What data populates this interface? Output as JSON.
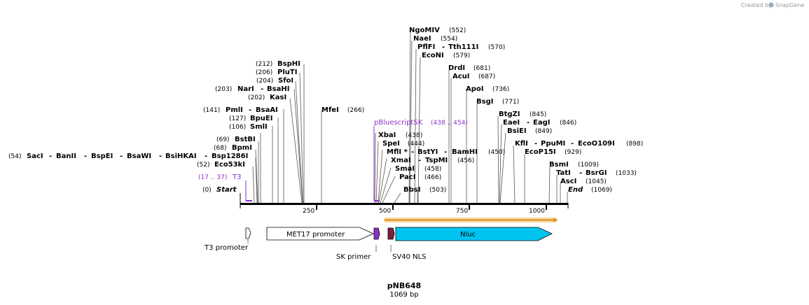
{
  "credit": {
    "prefix": "Created by",
    "brand": "SnapGene"
  },
  "map": {
    "name": "pNB648",
    "length": "1069 bp"
  },
  "ticks": [
    "250",
    "500",
    "750",
    "1000"
  ],
  "enzymes": [
    {
      "name": "Start",
      "pos": "(0)"
    },
    {
      "name": "T3",
      "pos": "(17 .. 37)"
    },
    {
      "name": "Eco53kI",
      "pos": "(52)"
    },
    {
      "name": "SacI",
      "pos": "(54)"
    },
    {
      "name": "BanII",
      "pos": ""
    },
    {
      "name": "BspEI",
      "pos": ""
    },
    {
      "name": "BsaWI",
      "pos": ""
    },
    {
      "name": "BsiHKAI",
      "pos": ""
    },
    {
      "name": "Bsp1286I",
      "pos": ""
    },
    {
      "name": "BpmI",
      "pos": "(68)"
    },
    {
      "name": "BstBI",
      "pos": "(69)"
    },
    {
      "name": "SmlI",
      "pos": "(106)"
    },
    {
      "name": "BpuEI",
      "pos": "(127)"
    },
    {
      "name": "PmlI",
      "pos": "(141)"
    },
    {
      "name": "BsaAI",
      "pos": ""
    },
    {
      "name": "KasI",
      "pos": "(202)"
    },
    {
      "name": "NarI",
      "pos": "(203)"
    },
    {
      "name": "BsaHI",
      "pos": ""
    },
    {
      "name": "SfoI",
      "pos": "(204)"
    },
    {
      "name": "PluTI",
      "pos": "(206)"
    },
    {
      "name": "BspHI",
      "pos": "(212)"
    },
    {
      "name": "MfeI",
      "pos": "(266)"
    },
    {
      "name": "pBluescriptSK",
      "pos": "(438 .. 454)"
    },
    {
      "name": "XbaI",
      "pos": "(438)"
    },
    {
      "name": "SpeI",
      "pos": "(444)"
    },
    {
      "name": "MflI *",
      "pos": ""
    },
    {
      "name": "BstYI",
      "pos": ""
    },
    {
      "name": "BamHI",
      "pos": "(450)"
    },
    {
      "name": "XmaI",
      "pos": ""
    },
    {
      "name": "TspMI",
      "pos": "(456)"
    },
    {
      "name": "SmaI",
      "pos": "(458)"
    },
    {
      "name": "PacI",
      "pos": "(466)"
    },
    {
      "name": "BbsI",
      "pos": "(503)"
    },
    {
      "name": "NgoMIV",
      "pos": "(552)"
    },
    {
      "name": "NaeI",
      "pos": "(554)"
    },
    {
      "name": "PflFI",
      "pos": ""
    },
    {
      "name": "Tth111I",
      "pos": "(570)"
    },
    {
      "name": "EcoNI",
      "pos": "(579)"
    },
    {
      "name": "DrdI",
      "pos": "(681)"
    },
    {
      "name": "AcuI",
      "pos": "(687)"
    },
    {
      "name": "ApoI",
      "pos": "(736)"
    },
    {
      "name": "BsgI",
      "pos": "(771)"
    },
    {
      "name": "BtgZI",
      "pos": "(845)"
    },
    {
      "name": "EaeI",
      "pos": ""
    },
    {
      "name": "EagI",
      "pos": "(846)"
    },
    {
      "name": "BsiEI",
      "pos": "(849)"
    },
    {
      "name": "KflI",
      "pos": ""
    },
    {
      "name": "PpuMI",
      "pos": ""
    },
    {
      "name": "EcoO109I",
      "pos": "(898)"
    },
    {
      "name": "EcoP15I",
      "pos": "(929)"
    },
    {
      "name": "BsmI",
      "pos": "(1009)"
    },
    {
      "name": "TatI",
      "pos": ""
    },
    {
      "name": "BsrGI",
      "pos": "(1033)"
    },
    {
      "name": "AscI",
      "pos": "(1045)"
    },
    {
      "name": "End",
      "pos": "(1069)"
    }
  ],
  "features": [
    {
      "name": "T3 promoter",
      "color": "#ffffff"
    },
    {
      "name": "MET17 promoter",
      "color": "#ffffff"
    },
    {
      "name": "SK primer",
      "color": "#8e2fc8"
    },
    {
      "name": "SV40 NLS",
      "color": "#7a2040"
    },
    {
      "name": "Nluc",
      "color": "#00c4f0"
    }
  ],
  "orf": {
    "color": "#f0a030"
  }
}
